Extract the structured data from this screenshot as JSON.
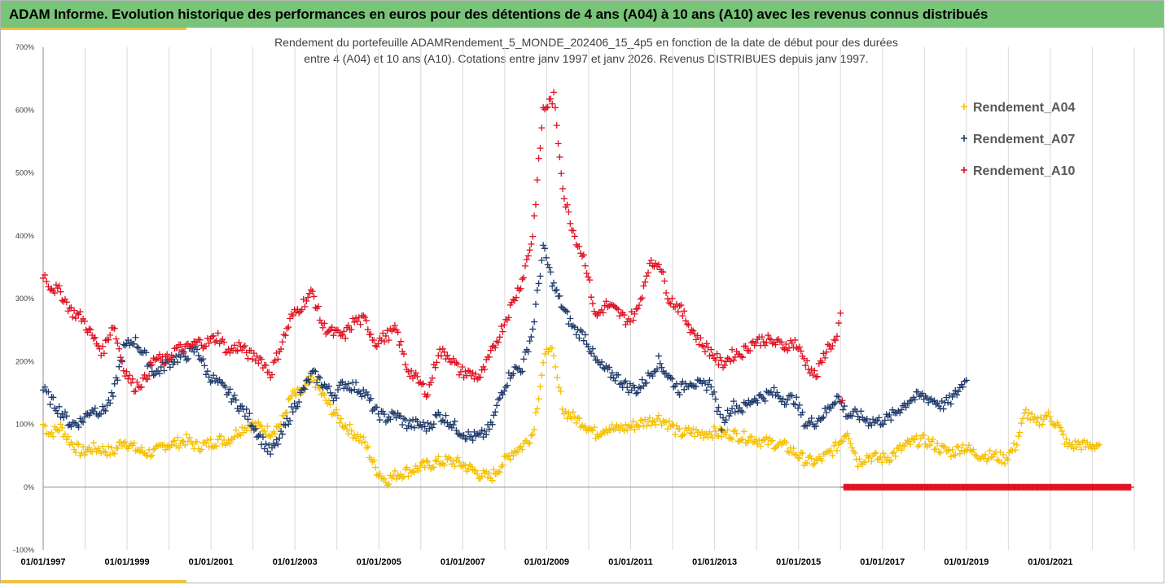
{
  "banner": {
    "title": "ADAM Informe. Evolution historique des performances en euros pour des détentions de 4 ans (A04) à 10 ans (A10) avec les revenus connus distribués"
  },
  "colors": {
    "banner_bg": "#78c478",
    "accent_underline": "#f0c040",
    "series_A04": "#f5c000",
    "series_A07": "#1f3a6b",
    "series_A10": "#e01020"
  },
  "chart_data": {
    "type": "scatter",
    "title_lines": [
      "Rendement du portefeuille ADAMRendement_5_MONDE_202406_15_4p5  en fonction de la date de début pour des durées",
      "entre 4 (A04) et 10 ans (A10). Cotations entre janv 1997 et janv 2026. Revenus DISTRIBUES depuis janv 1997."
    ],
    "x_axis": {
      "type": "date",
      "range": [
        "1997-01-01",
        "2023-01-01"
      ],
      "tick_labels": [
        "01/01/1997",
        "01/01/1999",
        "01/01/2001",
        "01/01/2003",
        "01/01/2005",
        "01/01/2007",
        "01/01/2009",
        "01/01/2011",
        "01/01/2013",
        "01/01/2015",
        "01/01/2017",
        "01/01/2019",
        "01/01/2021"
      ]
    },
    "y_axis": {
      "range": [
        -100,
        700
      ],
      "unit": "%",
      "tick_labels": [
        "-100%",
        "0%",
        "100%",
        "200%",
        "300%",
        "400%",
        "500%",
        "600%",
        "700%"
      ],
      "grid": "vertical"
    },
    "legend": {
      "position": "right",
      "entries": [
        "Rendement_A04",
        "Rendement_A07",
        "Rendement_A10"
      ]
    },
    "series": [
      {
        "name": "Rendement_A04",
        "marker": "+",
        "points": [
          [
            "1997-01",
            100
          ],
          [
            "1997-03",
            85
          ],
          [
            "1997-06",
            95
          ],
          [
            "1997-09",
            70
          ],
          [
            "1997-12",
            55
          ],
          [
            "1998-03",
            62
          ],
          [
            "1998-06",
            60
          ],
          [
            "1998-09",
            55
          ],
          [
            "1998-12",
            75
          ],
          [
            "1999-03",
            62
          ],
          [
            "1999-06",
            55
          ],
          [
            "1999-09",
            55
          ],
          [
            "1999-12",
            68
          ],
          [
            "2000-03",
            70
          ],
          [
            "2000-06",
            75
          ],
          [
            "2000-09",
            65
          ],
          [
            "2000-12",
            68
          ],
          [
            "2001-03",
            75
          ],
          [
            "2001-06",
            75
          ],
          [
            "2001-09",
            90
          ],
          [
            "2001-12",
            100
          ],
          [
            "2002-03",
            95
          ],
          [
            "2002-06",
            88
          ],
          [
            "2002-09",
            100
          ],
          [
            "2002-12",
            145
          ],
          [
            "2003-03",
            150
          ],
          [
            "2003-06",
            175
          ],
          [
            "2003-09",
            145
          ],
          [
            "2003-12",
            120
          ],
          [
            "2004-03",
            100
          ],
          [
            "2004-06",
            85
          ],
          [
            "2004-09",
            70
          ],
          [
            "2004-12",
            30
          ],
          [
            "2005-03",
            10
          ],
          [
            "2005-06",
            20
          ],
          [
            "2005-09",
            25
          ],
          [
            "2005-12",
            30
          ],
          [
            "2006-03",
            35
          ],
          [
            "2006-06",
            40
          ],
          [
            "2006-09",
            42
          ],
          [
            "2006-12",
            38
          ],
          [
            "2007-03",
            30
          ],
          [
            "2007-06",
            20
          ],
          [
            "2007-09",
            15
          ],
          [
            "2007-12",
            35
          ],
          [
            "2008-03",
            55
          ],
          [
            "2008-06",
            65
          ],
          [
            "2008-09",
            85
          ],
          [
            "2008-12",
            195
          ],
          [
            "2009-02",
            230
          ],
          [
            "2009-04",
            170
          ],
          [
            "2009-06",
            120
          ],
          [
            "2009-09",
            110
          ],
          [
            "2009-12",
            100
          ],
          [
            "2010-03",
            85
          ],
          [
            "2010-06",
            95
          ],
          [
            "2010-09",
            92
          ],
          [
            "2010-12",
            95
          ],
          [
            "2011-03",
            100
          ],
          [
            "2011-06",
            105
          ],
          [
            "2011-09",
            110
          ],
          [
            "2011-12",
            100
          ],
          [
            "2012-03",
            85
          ],
          [
            "2012-06",
            88
          ],
          [
            "2012-09",
            85
          ],
          [
            "2012-12",
            88
          ],
          [
            "2013-03",
            85
          ],
          [
            "2013-06",
            85
          ],
          [
            "2013-09",
            80
          ],
          [
            "2013-12",
            78
          ],
          [
            "2014-03",
            72
          ],
          [
            "2014-06",
            70
          ],
          [
            "2014-09",
            65
          ],
          [
            "2014-12",
            55
          ],
          [
            "2015-03",
            42
          ],
          [
            "2015-06",
            40
          ],
          [
            "2015-09",
            50
          ],
          [
            "2015-12",
            65
          ],
          [
            "2016-03",
            90
          ],
          [
            "2016-06",
            40
          ],
          [
            "2016-09",
            50
          ],
          [
            "2016-12",
            45
          ],
          [
            "2017-03",
            48
          ],
          [
            "2017-06",
            60
          ],
          [
            "2017-09",
            70
          ],
          [
            "2017-12",
            75
          ],
          [
            "2018-03",
            70
          ],
          [
            "2018-06",
            60
          ],
          [
            "2018-09",
            55
          ],
          [
            "2018-12",
            65
          ],
          [
            "2019-03",
            55
          ],
          [
            "2019-06",
            50
          ],
          [
            "2019-09",
            50
          ],
          [
            "2019-12",
            45
          ],
          [
            "2020-03",
            65
          ],
          [
            "2020-06",
            120
          ],
          [
            "2020-09",
            100
          ],
          [
            "2020-12",
            115
          ],
          [
            "2021-03",
            100
          ],
          [
            "2021-06",
            65
          ],
          [
            "2021-09",
            68
          ],
          [
            "2021-12",
            65
          ],
          [
            "2022-03",
            68
          ]
        ]
      },
      {
        "name": "Rendement_A07",
        "marker": "+",
        "points": [
          [
            "1997-01",
            155
          ],
          [
            "1997-03",
            140
          ],
          [
            "1997-06",
            120
          ],
          [
            "1997-09",
            100
          ],
          [
            "1997-12",
            105
          ],
          [
            "1998-03",
            125
          ],
          [
            "1998-06",
            120
          ],
          [
            "1998-09",
            145
          ],
          [
            "1998-12",
            220
          ],
          [
            "1999-03",
            235
          ],
          [
            "1999-06",
            210
          ],
          [
            "1999-09",
            180
          ],
          [
            "1999-12",
            195
          ],
          [
            "2000-03",
            205
          ],
          [
            "2000-06",
            210
          ],
          [
            "2000-09",
            220
          ],
          [
            "2000-12",
            180
          ],
          [
            "2001-03",
            165
          ],
          [
            "2001-06",
            150
          ],
          [
            "2001-09",
            130
          ],
          [
            "2001-12",
            110
          ],
          [
            "2002-03",
            80
          ],
          [
            "2002-06",
            55
          ],
          [
            "2002-09",
            80
          ],
          [
            "2002-12",
            120
          ],
          [
            "2003-03",
            150
          ],
          [
            "2003-06",
            180
          ],
          [
            "2003-09",
            165
          ],
          [
            "2003-12",
            145
          ],
          [
            "2004-03",
            165
          ],
          [
            "2004-06",
            160
          ],
          [
            "2004-09",
            150
          ],
          [
            "2004-12",
            120
          ],
          [
            "2005-03",
            110
          ],
          [
            "2005-06",
            115
          ],
          [
            "2005-09",
            100
          ],
          [
            "2005-12",
            100
          ],
          [
            "2006-03",
            95
          ],
          [
            "2006-06",
            115
          ],
          [
            "2006-09",
            105
          ],
          [
            "2006-12",
            90
          ],
          [
            "2007-03",
            80
          ],
          [
            "2007-06",
            80
          ],
          [
            "2007-09",
            95
          ],
          [
            "2007-12",
            150
          ],
          [
            "2008-03",
            185
          ],
          [
            "2008-06",
            190
          ],
          [
            "2008-09",
            250
          ],
          [
            "2008-12",
            380
          ],
          [
            "2009-03",
            320
          ],
          [
            "2009-06",
            280
          ],
          [
            "2009-09",
            250
          ],
          [
            "2009-12",
            240
          ],
          [
            "2010-03",
            200
          ],
          [
            "2010-06",
            185
          ],
          [
            "2010-09",
            175
          ],
          [
            "2010-12",
            160
          ],
          [
            "2011-03",
            155
          ],
          [
            "2011-06",
            175
          ],
          [
            "2011-09",
            200
          ],
          [
            "2011-12",
            175
          ],
          [
            "2012-03",
            155
          ],
          [
            "2012-06",
            170
          ],
          [
            "2012-09",
            160
          ],
          [
            "2012-12",
            165
          ],
          [
            "2013-03",
            100
          ],
          [
            "2013-06",
            130
          ],
          [
            "2013-09",
            125
          ],
          [
            "2013-12",
            140
          ],
          [
            "2014-03",
            145
          ],
          [
            "2014-06",
            150
          ],
          [
            "2014-09",
            140
          ],
          [
            "2014-12",
            140
          ],
          [
            "2015-03",
            100
          ],
          [
            "2015-06",
            105
          ],
          [
            "2015-09",
            120
          ],
          [
            "2015-12",
            145
          ],
          [
            "2016-03",
            115
          ],
          [
            "2016-06",
            115
          ],
          [
            "2016-09",
            105
          ],
          [
            "2016-12",
            105
          ],
          [
            "2017-03",
            110
          ],
          [
            "2017-06",
            125
          ],
          [
            "2017-09",
            140
          ],
          [
            "2017-12",
            145
          ],
          [
            "2018-03",
            140
          ],
          [
            "2018-06",
            130
          ],
          [
            "2018-09",
            140
          ],
          [
            "2018-12",
            165
          ],
          [
            "2019-01",
            170
          ]
        ]
      },
      {
        "name": "Rendement_A10",
        "marker": "+",
        "points": [
          [
            "1997-01",
            340
          ],
          [
            "1997-03",
            320
          ],
          [
            "1997-06",
            310
          ],
          [
            "1997-09",
            280
          ],
          [
            "1997-12",
            270
          ],
          [
            "1998-03",
            240
          ],
          [
            "1998-06",
            215
          ],
          [
            "1998-09",
            260
          ],
          [
            "1998-12",
            190
          ],
          [
            "1999-03",
            160
          ],
          [
            "1999-06",
            170
          ],
          [
            "1999-09",
            205
          ],
          [
            "1999-12",
            200
          ],
          [
            "2000-03",
            220
          ],
          [
            "2000-06",
            220
          ],
          [
            "2000-09",
            230
          ],
          [
            "2000-12",
            230
          ],
          [
            "2001-03",
            240
          ],
          [
            "2001-06",
            215
          ],
          [
            "2001-09",
            225
          ],
          [
            "2001-12",
            210
          ],
          [
            "2002-03",
            205
          ],
          [
            "2002-06",
            180
          ],
          [
            "2002-09",
            225
          ],
          [
            "2002-12",
            270
          ],
          [
            "2003-03",
            290
          ],
          [
            "2003-06",
            310
          ],
          [
            "2003-09",
            255
          ],
          [
            "2003-12",
            245
          ],
          [
            "2004-03",
            240
          ],
          [
            "2004-06",
            265
          ],
          [
            "2004-09",
            265
          ],
          [
            "2004-12",
            230
          ],
          [
            "2005-03",
            240
          ],
          [
            "2005-06",
            250
          ],
          [
            "2005-09",
            190
          ],
          [
            "2005-12",
            170
          ],
          [
            "2006-03",
            150
          ],
          [
            "2006-06",
            215
          ],
          [
            "2006-09",
            210
          ],
          [
            "2006-12",
            185
          ],
          [
            "2007-03",
            180
          ],
          [
            "2007-06",
            175
          ],
          [
            "2007-09",
            210
          ],
          [
            "2007-12",
            250
          ],
          [
            "2008-03",
            290
          ],
          [
            "2008-06",
            330
          ],
          [
            "2008-09",
            400
          ],
          [
            "2008-12",
            600
          ],
          [
            "2009-03",
            620
          ],
          [
            "2009-06",
            460
          ],
          [
            "2009-09",
            400
          ],
          [
            "2009-12",
            360
          ],
          [
            "2010-03",
            270
          ],
          [
            "2010-06",
            290
          ],
          [
            "2010-09",
            280
          ],
          [
            "2010-12",
            265
          ],
          [
            "2011-03",
            280
          ],
          [
            "2011-06",
            350
          ],
          [
            "2011-09",
            360
          ],
          [
            "2011-12",
            300
          ],
          [
            "2012-03",
            285
          ],
          [
            "2012-06",
            255
          ],
          [
            "2012-09",
            230
          ],
          [
            "2012-12",
            215
          ],
          [
            "2013-03",
            195
          ],
          [
            "2013-06",
            210
          ],
          [
            "2013-09",
            215
          ],
          [
            "2013-12",
            230
          ],
          [
            "2014-03",
            235
          ],
          [
            "2014-06",
            230
          ],
          [
            "2014-09",
            225
          ],
          [
            "2014-12",
            230
          ],
          [
            "2015-03",
            200
          ],
          [
            "2015-06",
            175
          ],
          [
            "2015-09",
            220
          ],
          [
            "2015-12",
            235
          ],
          [
            "2016-01",
            270
          ],
          [
            "2016-02",
            0
          ],
          [
            "2017-01",
            0
          ],
          [
            "2018-01",
            0
          ],
          [
            "2019-01",
            0
          ],
          [
            "2020-01",
            0
          ],
          [
            "2021-01",
            0
          ],
          [
            "2022-01",
            0
          ],
          [
            "2022-12",
            0
          ]
        ]
      }
    ]
  }
}
